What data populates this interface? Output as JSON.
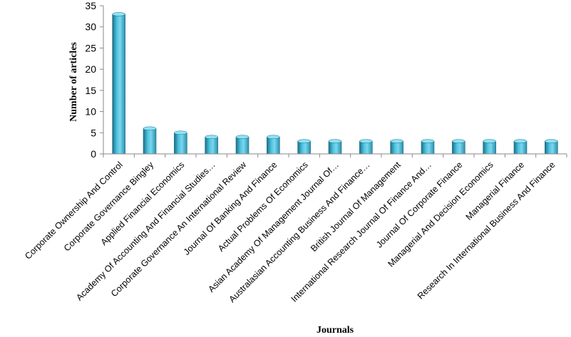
{
  "chart_data": {
    "type": "bar",
    "title": "",
    "xlabel": "Journals",
    "ylabel": "Number  of articles",
    "ylim": [
      0,
      35
    ],
    "yticks": [
      0,
      5,
      10,
      15,
      20,
      25,
      30,
      35
    ],
    "grid": false,
    "legend": "none",
    "bar_color": "#4fc3e0",
    "bar_color_dark": "#1b6f86",
    "categories": [
      "Corporate Ownership And Control",
      "Corporate Governance Bingley",
      "Applied Financial Economics",
      "Academy Of Accounting And Financial Studies…",
      "Corporate Governance An International Review",
      "Journal Of Banking And Finance",
      "Actual Problems Of Economics",
      "Asian Academy Of Management Journal Of…",
      "Australasian Accounting Business And Finance…",
      "British Journal Of Management",
      "International Research Journal Of Finance And…",
      "Journal Of Corporate Finance",
      "Managerial And Decision Economics",
      "Managerial Finance",
      "Research In International Business And Finance"
    ],
    "values": [
      33,
      6,
      5,
      4,
      4,
      4,
      3,
      3,
      3,
      3,
      3,
      3,
      3,
      3,
      3
    ]
  }
}
